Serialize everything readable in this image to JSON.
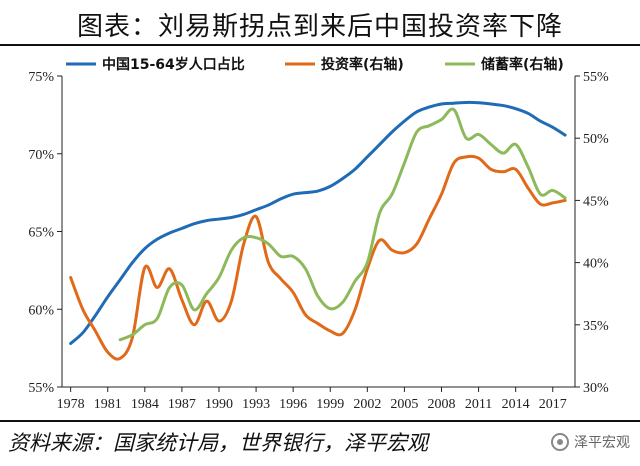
{
  "title": "图表：刘易斯拐点到来后中国投资率下降",
  "source": "资料来源：国家统计局，世界银行，泽平宏观",
  "watermark": {
    "logo": "wechat-logo-icon",
    "text": "泽平宏观"
  },
  "chart_data": {
    "type": "line",
    "x_ticks": [
      "1978",
      "1981",
      "1984",
      "1987",
      "1990",
      "1993",
      "1996",
      "1999",
      "2002",
      "2005",
      "2008",
      "2011",
      "2014",
      "2017"
    ],
    "y_left": {
      "ylim": [
        55,
        75
      ],
      "ticks": [
        "55%",
        "60%",
        "65%",
        "70%",
        "75%"
      ]
    },
    "y_right": {
      "ylim": [
        30,
        55
      ],
      "ticks": [
        "30%",
        "35%",
        "40%",
        "45%",
        "50%",
        "55%"
      ]
    },
    "grid": false,
    "legend_position": "top",
    "series": [
      {
        "name": "中国15-64岁人口占比",
        "axis": "left",
        "color": "#1f6bb5",
        "x": [
          1978,
          1979,
          1980,
          1981,
          1982,
          1983,
          1984,
          1985,
          1986,
          1987,
          1988,
          1989,
          1990,
          1991,
          1992,
          1993,
          1994,
          1995,
          1996,
          1997,
          1998,
          1999,
          2000,
          2001,
          2002,
          2003,
          2004,
          2005,
          2006,
          2007,
          2008,
          2009,
          2010,
          2011,
          2012,
          2013,
          2014,
          2015,
          2016,
          2017,
          2018
        ],
        "values": [
          57.8,
          58.5,
          59.6,
          60.8,
          61.9,
          63.0,
          63.9,
          64.5,
          64.9,
          65.2,
          65.5,
          65.7,
          65.8,
          65.9,
          66.1,
          66.4,
          66.7,
          67.1,
          67.4,
          67.5,
          67.6,
          67.9,
          68.4,
          69.0,
          69.8,
          70.6,
          71.4,
          72.1,
          72.7,
          73.0,
          73.2,
          73.25,
          73.3,
          73.28,
          73.2,
          73.1,
          72.9,
          72.6,
          72.1,
          71.7,
          71.2
        ]
      },
      {
        "name": "投资率(右轴)",
        "axis": "right",
        "color": "#e06a1a",
        "x": [
          1978,
          1979,
          1980,
          1981,
          1982,
          1983,
          1984,
          1985,
          1986,
          1987,
          1988,
          1989,
          1990,
          1991,
          1992,
          1993,
          1994,
          1995,
          1996,
          1997,
          1998,
          1999,
          2000,
          2001,
          2002,
          2003,
          2004,
          2005,
          2006,
          2007,
          2008,
          2009,
          2010,
          2011,
          2012,
          2013,
          2014,
          2015,
          2016,
          2017,
          2018
        ],
        "values": [
          38.8,
          36.2,
          34.5,
          32.8,
          32.3,
          34.0,
          39.6,
          38.0,
          39.5,
          37.0,
          35.0,
          36.9,
          35.3,
          36.9,
          41.5,
          43.7,
          40.0,
          38.7,
          37.6,
          35.8,
          35.1,
          34.5,
          34.3,
          36.2,
          39.5,
          41.8,
          41.0,
          40.8,
          41.5,
          43.5,
          45.5,
          48.0,
          48.5,
          48.4,
          47.5,
          47.3,
          47.5,
          46.0,
          44.7,
          44.8,
          45.0
        ]
      },
      {
        "name": "储蓄率(右轴)",
        "axis": "right",
        "color": "#8cba5a",
        "x": [
          1982,
          1983,
          1984,
          1985,
          1986,
          1987,
          1988,
          1989,
          1990,
          1991,
          1992,
          1993,
          1994,
          1995,
          1996,
          1997,
          1998,
          1999,
          2000,
          2001,
          2002,
          2003,
          2004,
          2005,
          2006,
          2007,
          2008,
          2009,
          2010,
          2011,
          2012,
          2013,
          2014,
          2015,
          2016,
          2017,
          2018
        ],
        "values": [
          33.8,
          34.2,
          35.0,
          35.5,
          38.0,
          38.2,
          36.2,
          37.5,
          38.8,
          41.0,
          42.0,
          42.0,
          41.5,
          40.5,
          40.5,
          39.5,
          37.3,
          36.3,
          36.8,
          38.5,
          40.0,
          44.0,
          45.5,
          48.0,
          50.5,
          51.0,
          51.5,
          52.3,
          50.0,
          50.3,
          49.5,
          48.8,
          49.5,
          47.7,
          45.5,
          45.8,
          45.2
        ]
      }
    ]
  }
}
